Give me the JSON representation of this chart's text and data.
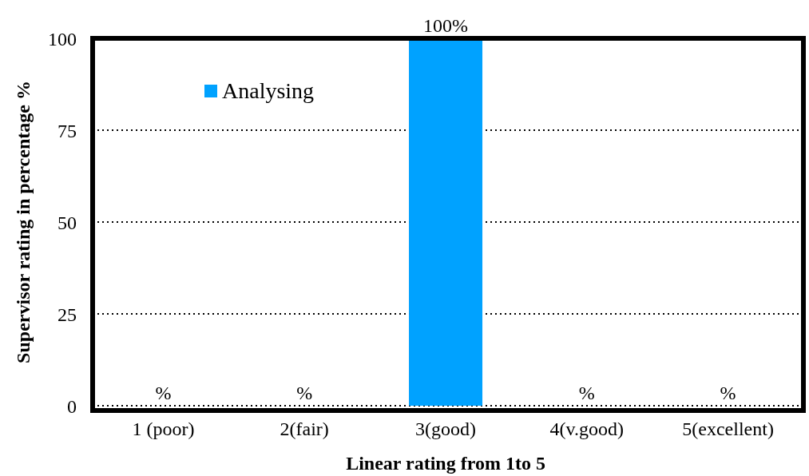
{
  "chart_data": {
    "type": "bar",
    "xlabel": "Linear rating from 1to 5",
    "ylabel": "Supervisor rating in percentage %",
    "categories": [
      "1 (poor)",
      "2(fair)",
      "3(good)",
      "4(v.good)",
      "5(excellent)"
    ],
    "series": [
      {
        "name": "Analysing",
        "color": "#00a2ff",
        "values": [
          0,
          0,
          100,
          0,
          0
        ],
        "value_labels": [
          "%",
          "%",
          "100%",
          "%",
          "%"
        ]
      }
    ],
    "ylim": [
      0,
      100
    ],
    "yticks": [
      0,
      25,
      50,
      75,
      100
    ],
    "grid": "y",
    "legend": "top left"
  }
}
